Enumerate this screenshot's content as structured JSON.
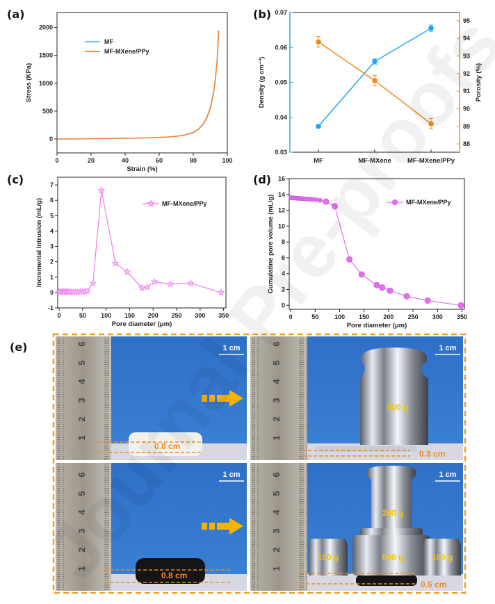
{
  "watermark": "Journal Pre-proofs",
  "chart_data": [
    {
      "panel": "(a)",
      "type": "line",
      "title": "",
      "xlabel": "Strain (%)",
      "ylabel": "Stress (KPa)",
      "xlim": [
        0,
        100
      ],
      "ylim": [
        -250,
        2270
      ],
      "xticks": [
        0,
        20,
        40,
        60,
        80,
        100
      ],
      "yticks": [
        0,
        500,
        1000,
        1500,
        2000
      ],
      "grid": false,
      "legend": "top-left",
      "series": [
        {
          "name": "MF",
          "color": "#6cc4f2",
          "x": [
            0,
            10,
            20,
            30,
            40,
            50,
            60,
            65,
            70,
            75,
            80,
            83,
            86,
            88,
            90,
            92,
            93,
            94,
            94.8
          ],
          "y": [
            0,
            2,
            5,
            8,
            12,
            18,
            28,
            36,
            50,
            72,
            120,
            178,
            280,
            395,
            560,
            850,
            1100,
            1420,
            1950
          ]
        },
        {
          "name": "MF-MXene/PPy",
          "color": "#f5893a",
          "x": [
            0,
            10,
            20,
            30,
            40,
            50,
            60,
            65,
            70,
            75,
            80,
            83,
            86,
            88,
            90,
            92,
            93,
            94,
            95
          ],
          "y": [
            0,
            2,
            5,
            8,
            12,
            18,
            28,
            35,
            48,
            70,
            115,
            170,
            270,
            380,
            540,
            830,
            1080,
            1400,
            1940
          ]
        }
      ]
    },
    {
      "panel": "(b)",
      "type": "line",
      "title": "",
      "categories": [
        "MF",
        "MF-MXene",
        "MF-MXene/PPy"
      ],
      "ylabel": "Density (g cm⁻³)",
      "y2label": "Porosity (%)",
      "ylim": [
        0.03,
        0.07
      ],
      "y2lim": [
        87.53,
        95.47
      ],
      "yticks": [
        0.03,
        0.04,
        0.05,
        0.06,
        0.07
      ],
      "y2ticks": [
        88,
        89,
        90,
        91,
        92,
        93,
        94,
        95
      ],
      "grid": false,
      "series": [
        {
          "axis": "left",
          "color": "#1ea7ec",
          "values": [
            0.0374,
            0.056,
            0.0655
          ],
          "errors": [
            0.0005,
            0.0008,
            0.0009
          ]
        },
        {
          "axis": "right",
          "color": "#f08a1c",
          "values": [
            93.8,
            91.6,
            89.15
          ],
          "errors": [
            0.3,
            0.3,
            0.3
          ]
        }
      ]
    },
    {
      "panel": "(c)",
      "type": "line",
      "title": "",
      "xlabel": "Pore diameter  (μm)",
      "ylabel": "Incremental Intrusion (mL/g)",
      "xlim": [
        -3,
        355
      ],
      "ylim": [
        -1,
        7.5
      ],
      "xticks": [
        0,
        50,
        100,
        150,
        200,
        250,
        300,
        350
      ],
      "yticks": [
        -1,
        0,
        1,
        2,
        3,
        4,
        5,
        6,
        7
      ],
      "grid": false,
      "legend": "top-right",
      "series": [
        {
          "name": "MF-MXene/PPy",
          "color": "#ee7cf0",
          "marker": "star",
          "x": [
            0,
            3,
            6,
            9,
            12,
            15,
            18,
            21,
            25,
            30,
            35,
            40,
            45,
            50,
            55,
            60,
            72,
            90,
            120,
            145,
            176,
            187,
            203,
            237,
            280,
            345
          ],
          "y": [
            0.05,
            0.04,
            0.06,
            0.05,
            0.05,
            0.04,
            0.06,
            0.05,
            0.05,
            0.04,
            0.05,
            0.05,
            0.06,
            0.06,
            0.07,
            0.1,
            0.6,
            6.65,
            1.9,
            1.35,
            0.3,
            0.35,
            0.7,
            0.55,
            0.6,
            0
          ]
        }
      ]
    },
    {
      "panel": "(d)",
      "type": "line",
      "title": "",
      "xlabel": "Pore diameter (μm)",
      "ylabel": "Cumulatine pore volume (mL/g)",
      "xlim": [
        -3,
        355
      ],
      "ylim": [
        -0.5,
        16
      ],
      "xticks": [
        0,
        50,
        100,
        150,
        200,
        250,
        300,
        350
      ],
      "yticks": [
        0,
        2,
        4,
        6,
        8,
        10,
        12,
        14,
        16
      ],
      "grid": false,
      "legend": "top-right",
      "series": [
        {
          "name": "MF-MXene/PPy",
          "color": "#e070ee",
          "marker": "circle",
          "x": [
            0,
            3,
            6,
            9,
            12,
            15,
            18,
            21,
            25,
            30,
            35,
            40,
            45,
            52,
            60,
            72,
            90,
            120,
            145,
            176,
            187,
            203,
            237,
            280,
            348
          ],
          "y": [
            13.6,
            13.58,
            13.56,
            13.55,
            13.53,
            13.52,
            13.5,
            13.48,
            13.46,
            13.44,
            13.42,
            13.4,
            13.38,
            13.34,
            13.25,
            13.1,
            12.5,
            5.8,
            3.9,
            2.55,
            2.25,
            1.85,
            1.15,
            0.6,
            0
          ]
        }
      ]
    }
  ],
  "panel_e": {
    "label": "(e)",
    "scale_bar": "1 cm",
    "ruler_numbers": [
      "1",
      "2",
      "3",
      "4",
      "5",
      "6"
    ],
    "accent_orange": "#f08a1c",
    "weight_label_color": "#f5c400",
    "photos": [
      {
        "sample": "white",
        "thickness": "0.8 cm",
        "weights": []
      },
      {
        "sample": "white",
        "thickness": "0.3 cm",
        "weights": [
          "500 g"
        ]
      },
      {
        "sample": "black",
        "thickness": "0.8 cm",
        "weights": []
      },
      {
        "sample": "black",
        "thickness": "0.5 cm",
        "weights": [
          "200 g",
          "500 g",
          "100 g",
          "100 g"
        ]
      }
    ]
  }
}
